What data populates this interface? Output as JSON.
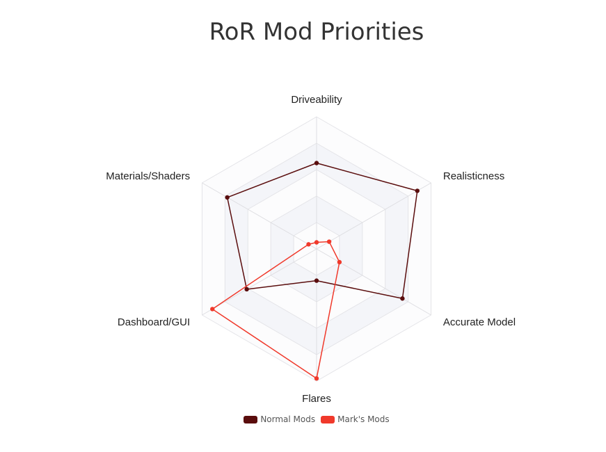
{
  "title": "RoR Mod Priorities",
  "chart_data": {
    "type": "radar",
    "title": "RoR Mod Priorities",
    "axes": [
      "Driveability",
      "Realisticness",
      "Accurate Model",
      "Flares",
      "Dashboard/GUI",
      "Materials/Shaders"
    ],
    "range": [
      0,
      10
    ],
    "grid": true,
    "legend_position": "bottom",
    "series": [
      {
        "name": "Normal Mods",
        "color": "#5a0d0d",
        "values": [
          6.5,
          8.8,
          7.5,
          2.4,
          6.1,
          7.8
        ]
      },
      {
        "name": "Mark's Mods",
        "color": "#f0392b",
        "values": [
          0.5,
          1.1,
          2.0,
          9.8,
          9.1,
          0.7
        ]
      }
    ]
  },
  "legend": [
    {
      "label": "Normal Mods",
      "color": "#5a0d0d"
    },
    {
      "label": "Mark's Mods",
      "color": "#f0392b"
    }
  ]
}
